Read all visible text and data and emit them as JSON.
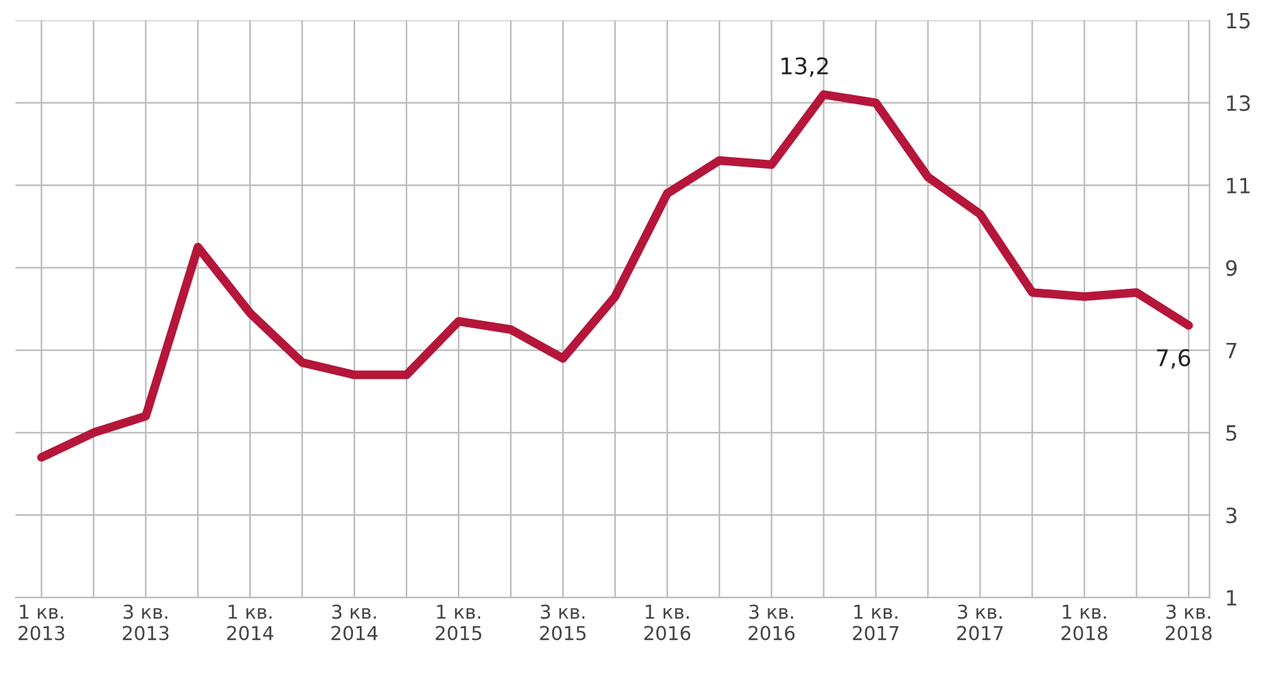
{
  "chart_data": {
    "type": "line",
    "categories": [
      "1 кв.\n2013",
      null,
      "3 кв.\n2013",
      null,
      "1 кв.\n2014",
      null,
      "3 кв.\n2014",
      null,
      "1 кв.\n2015",
      null,
      "3 кв.\n2015",
      null,
      "1 кв.\n2016",
      null,
      "3 кв.\n2016",
      null,
      "1 кв.\n2017",
      null,
      "3 кв.\n2017",
      null,
      "1 кв.\n2018",
      null,
      "3 кв.\n2018"
    ],
    "series": [
      {
        "color": "#b5163a",
        "values": [
          4.4,
          5.0,
          5.4,
          9.5,
          7.9,
          6.7,
          6.4,
          6.4,
          7.7,
          7.5,
          6.8,
          8.3,
          10.8,
          11.6,
          11.5,
          13.2,
          13.0,
          11.2,
          10.3,
          8.4,
          8.3,
          8.4,
          7.6
        ],
        "value_labels": [
          null,
          null,
          null,
          null,
          null,
          null,
          null,
          null,
          null,
          null,
          null,
          null,
          null,
          null,
          null,
          "13,2",
          null,
          null,
          null,
          null,
          null,
          null,
          "7,6"
        ]
      }
    ],
    "ylim": [
      1,
      15
    ],
    "yticks": [
      1,
      3,
      5,
      7,
      9,
      11,
      13,
      15
    ],
    "grid": true,
    "marker": "none",
    "line_style": "solid",
    "legend": false
  }
}
